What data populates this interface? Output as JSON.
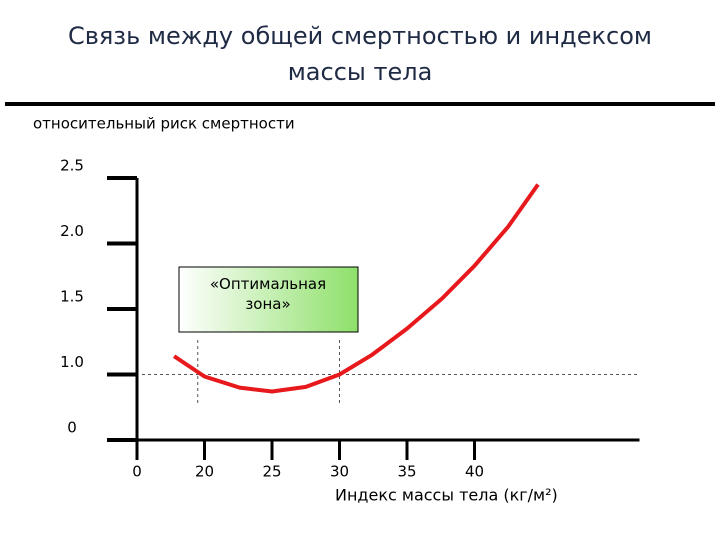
{
  "chart_data": {
    "type": "line",
    "title": "Связь между общей смертностью и индексом массы тела",
    "y_label": "относительный риск смертности",
    "x_label": "Индекс массы тела (кг/м²)",
    "annotation": "«Оптимальная зона»",
    "x": [
      11,
      20,
      22.6,
      25,
      27.5,
      30,
      32.4,
      35,
      37.6,
      40,
      42.5,
      44.7
    ],
    "series": [
      {
        "color": "#e8191c",
        "values": [
          1.14,
          0.97,
          0.8,
          0.74,
          0.81,
          1.0,
          1.15,
          1.35,
          1.58,
          1.83,
          2.13,
          2.45
        ]
      }
    ],
    "xlim": [
      0,
      50
    ],
    "xticks": [
      0,
      20,
      25,
      30,
      35,
      40
    ],
    "ylim": [
      0,
      2.5
    ],
    "yticks": [
      0,
      {
        "value": 1,
        "label": "1.0"
      },
      1.5,
      {
        "value": 2,
        "label": "2.0"
      },
      2.5
    ],
    "reference_y": 1,
    "zone_x": [
      18,
      30
    ]
  }
}
